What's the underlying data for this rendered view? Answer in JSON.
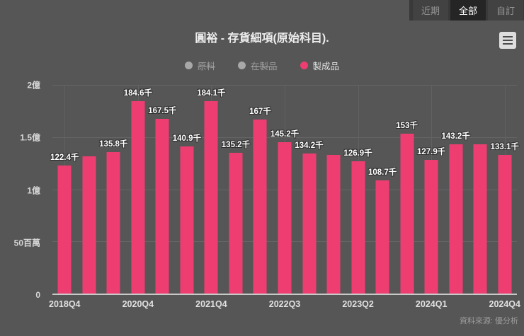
{
  "range_selector": {
    "items": [
      {
        "label": "近期",
        "active": false
      },
      {
        "label": "全部",
        "active": true
      },
      {
        "label": "自訂",
        "active": false
      }
    ]
  },
  "source": {
    "label": "資料來源: 優分析"
  },
  "colors": {
    "background": "#565656",
    "bar": "#ee3d71",
    "disabled_legend": "#9c9c9c",
    "axis_line": "#c9c9c9",
    "gridline": "#656565"
  },
  "chart_data": {
    "type": "bar",
    "title": "圓裕 - 存貨細項(原始科目).",
    "legend": [
      {
        "name": "原料",
        "enabled": false
      },
      {
        "name": "在製品",
        "enabled": false
      },
      {
        "name": "製成品",
        "enabled": true
      }
    ],
    "legend_position": "top-center",
    "grid": true,
    "y_axis": {
      "max": 200,
      "unit": "百萬 (axis), 千 (labels)",
      "ticks": [
        {
          "label": "2億",
          "value": 200
        },
        {
          "label": "1.5億",
          "value": 150
        },
        {
          "label": "1億",
          "value": 100
        },
        {
          "label": "50百萬",
          "value": 50
        },
        {
          "label": "0",
          "value": 0
        }
      ]
    },
    "x_ticks": [
      {
        "label": "2018Q4",
        "index": 0
      },
      {
        "label": "2020Q4",
        "index": 3
      },
      {
        "label": "2021Q4",
        "index": 6
      },
      {
        "label": "2022Q3",
        "index": 9
      },
      {
        "label": "2023Q2",
        "index": 12
      },
      {
        "label": "2024Q1",
        "index": 15
      },
      {
        "label": "2024Q4",
        "index": 18
      }
    ],
    "series": [
      {
        "name": "製成品",
        "color": "#ee3d71",
        "points": [
          {
            "value": 122.4,
            "label": "122.4千"
          },
          {
            "value": 131.4,
            "label": null
          },
          {
            "value": 135.8,
            "label": "135.8千"
          },
          {
            "value": 184.6,
            "label": "184.6千"
          },
          {
            "value": 167.5,
            "label": "167.5千"
          },
          {
            "value": 140.9,
            "label": "140.9千"
          },
          {
            "value": 184.1,
            "label": "184.1千"
          },
          {
            "value": 135.2,
            "label": "135.2千"
          },
          {
            "value": 167.0,
            "label": "167千"
          },
          {
            "value": 145.2,
            "label": "145.2千"
          },
          {
            "value": 134.2,
            "label": "134.2千"
          },
          {
            "value": 133.0,
            "label": null
          },
          {
            "value": 126.9,
            "label": "126.9千"
          },
          {
            "value": 108.7,
            "label": "108.7千"
          },
          {
            "value": 153.0,
            "label": "153千"
          },
          {
            "value": 127.9,
            "label": "127.9千"
          },
          {
            "value": 143.2,
            "label": "143.2千"
          },
          {
            "value": 142.8,
            "label": null
          },
          {
            "value": 133.1,
            "label": "133.1千"
          }
        ]
      }
    ]
  }
}
